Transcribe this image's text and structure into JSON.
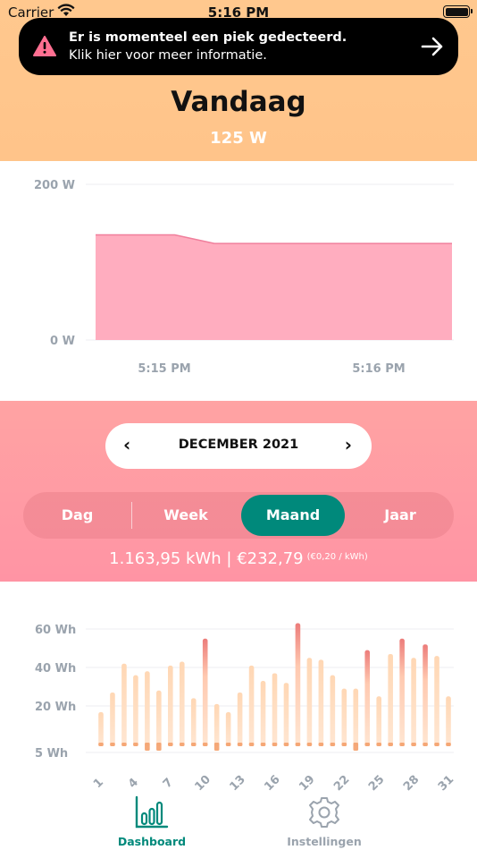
{
  "status_bar": {
    "carrier": "Carrier",
    "time": "5:16 PM"
  },
  "alert": {
    "line1": "Er is momenteel een piek gedecteerd.",
    "line2": "Klik hier voor meer informatie."
  },
  "header": {
    "title": "Vandaag",
    "subtitle": "125 W"
  },
  "live_chart": {
    "chart_data": {
      "type": "area",
      "y_ticks": [
        "200 W",
        "0 W"
      ],
      "x_ticks": [
        "5:15 PM",
        "5:16 PM"
      ],
      "ylim": [
        0,
        200
      ],
      "series": [
        {
          "values": [
            135,
            135,
            135,
            124,
            124,
            124,
            124,
            124,
            124,
            124
          ]
        }
      ],
      "color": "#ffadbf"
    }
  },
  "period": {
    "month_label": "DECEMBER 2021",
    "prev_label": "‹",
    "next_label": "›",
    "tabs": [
      "Dag",
      "Week",
      "Maand",
      "Jaar"
    ],
    "active_tab": "Maand",
    "summary_main": "1.163,95 kWh | €232,79",
    "summary_rate": "(€0,20 / kWh)"
  },
  "bar_chart": {
    "chart_data": {
      "type": "bar",
      "y_ticks": [
        "60 Wh",
        "40 Wh",
        "20 Wh",
        "5 Wh"
      ],
      "x_ticks": [
        "1",
        "4",
        "7",
        "10",
        "13",
        "16",
        "19",
        "22",
        "25",
        "28",
        "31"
      ],
      "categories": [
        "1",
        "2",
        "3",
        "4",
        "5",
        "6",
        "7",
        "8",
        "9",
        "10",
        "11",
        "12",
        "13",
        "14",
        "15",
        "16",
        "17",
        "18",
        "19",
        "20",
        "21",
        "22",
        "23",
        "24",
        "25",
        "26",
        "27",
        "28",
        "29",
        "30",
        "31"
      ],
      "values": [
        18,
        27,
        42,
        36,
        38,
        28,
        41,
        43,
        24,
        55,
        21,
        18,
        27,
        41,
        33,
        37,
        32,
        63,
        45,
        44,
        36,
        29,
        29,
        49,
        25,
        47,
        55,
        45,
        52,
        46,
        25
      ],
      "low_markers": [
        5,
        5,
        5,
        5,
        4,
        3,
        5,
        5,
        5,
        5,
        3,
        5,
        5,
        5,
        5,
        5,
        5,
        5,
        5,
        5,
        5,
        5,
        3,
        5,
        5,
        5,
        5,
        5,
        5,
        5,
        5
      ],
      "peak_days": [
        10,
        18,
        24,
        27,
        29
      ]
    }
  },
  "tabbar": {
    "dashboard": "Dashboard",
    "settings": "Instellingen"
  }
}
